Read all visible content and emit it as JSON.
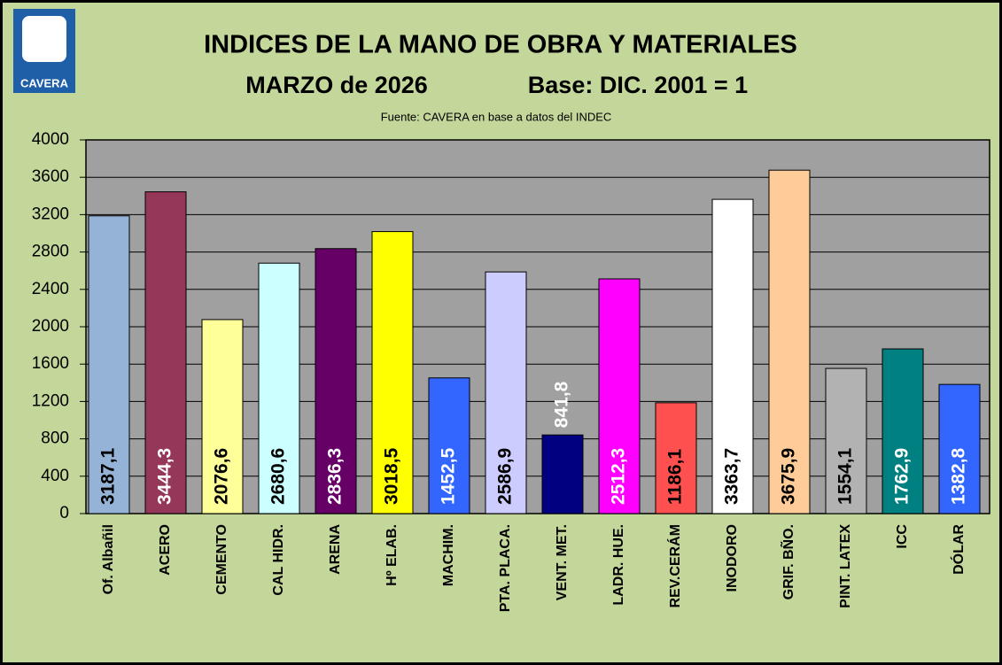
{
  "chart_data": {
    "type": "bar",
    "logo_text": "CAVERA",
    "title": "INDICES DE LA MANO DE OBRA Y MATERIALES",
    "subtitle": "MARZO de 2026",
    "base": "Base: DIC. 2001 = 1",
    "source": "Fuente:  CAVERA  en base a datos del INDEC",
    "categories": [
      "Of. Albañil",
      "ACERO",
      "CEMENTO",
      "CAL HIDR.",
      "ARENA",
      "Hº ELAB.",
      "MACHIM.",
      "PTA. PLACA.",
      "VENT. MET.",
      "LADR. HUE.",
      "REV.CERÁM",
      "INODORO",
      "GRIF. BÑO.",
      "PINT. LATEX",
      "ICC",
      "DÓLAR"
    ],
    "values": [
      3187.1,
      3444.3,
      2076.6,
      2680.6,
      2836.3,
      3018.5,
      1452.5,
      2586.9,
      841.8,
      2512.3,
      1186.1,
      3363.7,
      3675.9,
      1554.1,
      1762.9,
      1382.8
    ],
    "value_labels": [
      "3187,1",
      "3444,3",
      "2076,6",
      "2680,6",
      "2836,3",
      "3018,5",
      "1452,5",
      "2586,9",
      "841,8",
      "2512,3",
      "1186,1",
      "3363,7",
      "3675,9",
      "1554,1",
      "1762,9",
      "1382,8"
    ],
    "colors": [
      "#95b3d7",
      "#953758",
      "#ffff99",
      "#ccffff",
      "#660066",
      "#ffff00",
      "#3366ff",
      "#ccccff",
      "#000080",
      "#ff00ff",
      "#ff5050",
      "#ffffff",
      "#ffcc99",
      "#b2b2b2",
      "#008080",
      "#3366ff"
    ],
    "label_colors": [
      "#000000",
      "#ffffff",
      "#000000",
      "#000000",
      "#ffffff",
      "#000000",
      "#ffffff",
      "#000000",
      "#ffffff",
      "#ffffff",
      "#000000",
      "#000000",
      "#000000",
      "#000000",
      "#ffffff",
      "#ffffff"
    ],
    "ylim": [
      0,
      4000
    ],
    "yticks": [
      0,
      400,
      800,
      1200,
      1600,
      2000,
      2400,
      2800,
      3200,
      3600,
      4000
    ],
    "grid": true
  }
}
